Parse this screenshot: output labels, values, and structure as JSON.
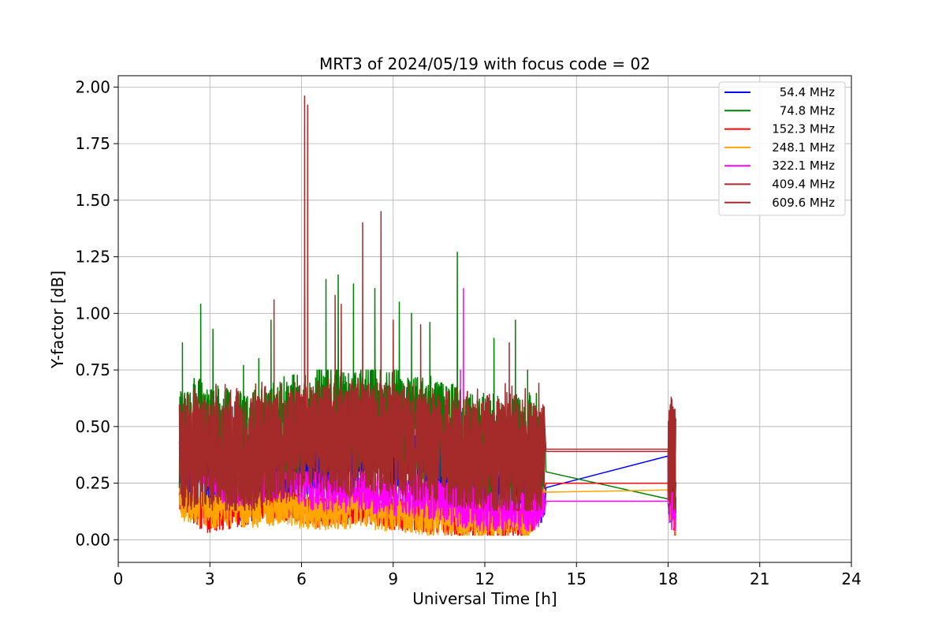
{
  "chart_data": {
    "type": "line",
    "title": "MRT3 of 2024/05/19 with focus code = 02",
    "xlabel": "Universal Time [h]",
    "ylabel": "Y-factor [dB]",
    "xlim": [
      0,
      24
    ],
    "ylim": [
      -0.1,
      2.05
    ],
    "xticks": [
      0,
      3,
      6,
      9,
      12,
      15,
      18,
      21,
      24
    ],
    "yticks": [
      0.0,
      0.25,
      0.5,
      0.75,
      1.0,
      1.25,
      1.5,
      1.75,
      2.0
    ],
    "xtick_labels": [
      "0",
      "3",
      "6",
      "9",
      "12",
      "15",
      "18",
      "21",
      "24"
    ],
    "ytick_labels": [
      "0.00",
      "0.25",
      "0.50",
      "0.75",
      "1.00",
      "1.25",
      "1.50",
      "1.75",
      "2.00"
    ],
    "grid": true,
    "legend_position": "top-right",
    "series": [
      {
        "name": "54.4 MHz",
        "color": "#0000ff",
        "x": [
          2.0,
          2.5,
          3.0,
          3.5,
          4.0,
          4.5,
          5.0,
          5.5,
          6.0,
          6.5,
          7.0,
          7.5,
          8.0,
          8.5,
          9.0,
          9.5,
          10.0,
          10.5,
          11.0,
          11.5,
          12.0,
          12.5,
          13.0,
          13.5,
          14.0,
          18.0,
          18.25
        ],
        "y": [
          0.33,
          0.36,
          0.26,
          0.24,
          0.22,
          0.23,
          0.3,
          0.31,
          0.34,
          0.32,
          0.33,
          0.33,
          0.34,
          0.38,
          0.36,
          0.35,
          0.36,
          0.34,
          0.29,
          0.27,
          0.25,
          0.24,
          0.24,
          0.22,
          0.23,
          0.25,
          0.18
        ],
        "band": [
          0.05,
          0.47
        ],
        "spikes": [
          [
            2.4,
            0.48
          ],
          [
            8.0,
            0.55
          ],
          [
            8.2,
            0.52
          ],
          [
            11.2,
            0.45
          ],
          [
            18.0,
            0.37
          ]
        ]
      },
      {
        "name": "74.8 MHz",
        "color": "#008000",
        "x": [
          2.0,
          2.5,
          3.0,
          3.5,
          4.0,
          4.5,
          5.0,
          5.5,
          6.0,
          6.5,
          7.0,
          7.5,
          8.0,
          8.5,
          9.0,
          9.5,
          10.0,
          10.5,
          11.0,
          11.5,
          12.0,
          12.5,
          13.0,
          13.5,
          14.0,
          18.0,
          18.25
        ],
        "y": [
          0.42,
          0.48,
          0.46,
          0.45,
          0.44,
          0.44,
          0.47,
          0.5,
          0.52,
          0.55,
          0.56,
          0.54,
          0.55,
          0.56,
          0.54,
          0.52,
          0.5,
          0.48,
          0.46,
          0.43,
          0.42,
          0.4,
          0.4,
          0.38,
          0.3,
          0.18,
          0.25
        ],
        "band": [
          0.12,
          0.75
        ],
        "spikes": [
          [
            2.1,
            0.87
          ],
          [
            2.7,
            1.04
          ],
          [
            3.1,
            0.93
          ],
          [
            4.1,
            0.77
          ],
          [
            4.6,
            0.8
          ],
          [
            5.0,
            0.97
          ],
          [
            6.1,
            1.07
          ],
          [
            6.8,
            1.15
          ],
          [
            7.2,
            1.17
          ],
          [
            7.7,
            1.13
          ],
          [
            8.4,
            1.11
          ],
          [
            9.2,
            1.05
          ],
          [
            9.6,
            1.0
          ],
          [
            10.2,
            0.96
          ],
          [
            11.1,
            1.27
          ],
          [
            12.3,
            0.89
          ],
          [
            13.0,
            0.97
          ],
          [
            13.4,
            0.75
          ]
        ]
      },
      {
        "name": "152.3 MHz",
        "color": "#ff0000",
        "x": [
          2.0,
          2.5,
          3.0,
          3.5,
          4.0,
          4.5,
          5.0,
          5.5,
          6.0,
          6.5,
          7.0,
          7.5,
          8.0,
          8.5,
          9.0,
          9.5,
          10.0,
          10.5,
          11.0,
          11.5,
          12.0,
          12.5,
          13.0,
          13.5,
          14.0,
          18.0,
          18.25
        ],
        "y": [
          0.2,
          0.13,
          0.1,
          0.12,
          0.13,
          0.14,
          0.15,
          0.16,
          0.15,
          0.13,
          0.14,
          0.14,
          0.15,
          0.13,
          0.12,
          0.11,
          0.1,
          0.1,
          0.09,
          0.09,
          0.08,
          0.08,
          0.08,
          0.09,
          0.25,
          0.25,
          0.03
        ],
        "band": [
          0.02,
          0.22
        ],
        "spikes": []
      },
      {
        "name": "248.1 MHz",
        "color": "#ffa500",
        "x": [
          2.0,
          2.5,
          3.0,
          3.5,
          4.0,
          4.5,
          5.0,
          5.5,
          6.0,
          6.5,
          7.0,
          7.5,
          8.0,
          8.5,
          9.0,
          9.5,
          10.0,
          10.5,
          11.0,
          11.5,
          12.0,
          12.5,
          13.0,
          13.5,
          14.0,
          18.0,
          18.25
        ],
        "y": [
          0.17,
          0.15,
          0.13,
          0.14,
          0.14,
          0.13,
          0.14,
          0.15,
          0.13,
          0.12,
          0.13,
          0.13,
          0.14,
          0.12,
          0.12,
          0.11,
          0.1,
          0.1,
          0.09,
          0.09,
          0.08,
          0.09,
          0.09,
          0.09,
          0.21,
          0.22,
          0.05
        ],
        "band": [
          0.02,
          0.24
        ],
        "spikes": []
      },
      {
        "name": "322.1 MHz",
        "color": "#ff00ff",
        "x": [
          2.0,
          2.5,
          3.0,
          3.5,
          4.0,
          4.5,
          5.0,
          5.5,
          6.0,
          6.5,
          7.0,
          7.5,
          8.0,
          8.5,
          9.0,
          9.5,
          10.0,
          10.5,
          11.0,
          11.5,
          12.0,
          12.5,
          13.0,
          13.5,
          14.0,
          18.0,
          18.25
        ],
        "y": [
          0.45,
          0.42,
          0.3,
          0.25,
          0.24,
          0.25,
          0.27,
          0.26,
          0.25,
          0.22,
          0.22,
          0.21,
          0.22,
          0.2,
          0.2,
          0.19,
          0.19,
          0.18,
          0.16,
          0.14,
          0.13,
          0.13,
          0.13,
          0.12,
          0.17,
          0.17,
          0.1
        ],
        "band": [
          0.04,
          0.3
        ],
        "spikes": [
          [
            2.3,
            0.47
          ],
          [
            11.3,
            1.11
          ],
          [
            11.2,
            0.75
          ]
        ]
      },
      {
        "name": "409.4 MHz",
        "color": "#a52a2a",
        "x": [
          2.0,
          2.5,
          3.0,
          3.5,
          4.0,
          4.5,
          5.0,
          5.5,
          6.0,
          6.5,
          7.0,
          7.5,
          8.0,
          8.5,
          9.0,
          9.5,
          10.0,
          10.5,
          11.0,
          11.5,
          12.0,
          12.5,
          13.0,
          13.5,
          14.0,
          18.0,
          18.25
        ],
        "y": [
          0.38,
          0.4,
          0.38,
          0.36,
          0.36,
          0.38,
          0.4,
          0.42,
          0.45,
          0.46,
          0.46,
          0.45,
          0.47,
          0.46,
          0.45,
          0.44,
          0.43,
          0.42,
          0.4,
          0.38,
          0.37,
          0.36,
          0.36,
          0.34,
          0.4,
          0.4,
          0.35
        ],
        "band": [
          0.13,
          0.8
        ],
        "spikes": [
          [
            6.1,
            1.96
          ],
          [
            6.2,
            1.92
          ],
          [
            8.0,
            1.4
          ],
          [
            8.6,
            1.45
          ],
          [
            5.1,
            1.06
          ],
          [
            7.3,
            1.04
          ],
          [
            9.0,
            0.97
          ],
          [
            18.1,
            0.63
          ]
        ]
      },
      {
        "name": "609.6 MHz",
        "color": "#a52a2a",
        "x": [
          2.0,
          2.5,
          3.0,
          3.5,
          4.0,
          4.5,
          5.0,
          5.5,
          6.0,
          6.5,
          7.0,
          7.5,
          8.0,
          8.5,
          9.0,
          9.5,
          10.0,
          10.5,
          11.0,
          11.5,
          12.0,
          12.5,
          13.0,
          13.5,
          14.0,
          18.0,
          18.25
        ],
        "y": [
          0.36,
          0.38,
          0.36,
          0.35,
          0.35,
          0.37,
          0.39,
          0.41,
          0.43,
          0.44,
          0.44,
          0.43,
          0.45,
          0.44,
          0.43,
          0.42,
          0.41,
          0.4,
          0.38,
          0.37,
          0.36,
          0.35,
          0.35,
          0.33,
          0.39,
          0.39,
          0.33
        ],
        "band": [
          0.13,
          0.78
        ],
        "spikes": [
          [
            7.1,
            1.08
          ],
          [
            9.9,
            0.95
          ],
          [
            12.8,
            0.87
          ]
        ]
      }
    ]
  }
}
